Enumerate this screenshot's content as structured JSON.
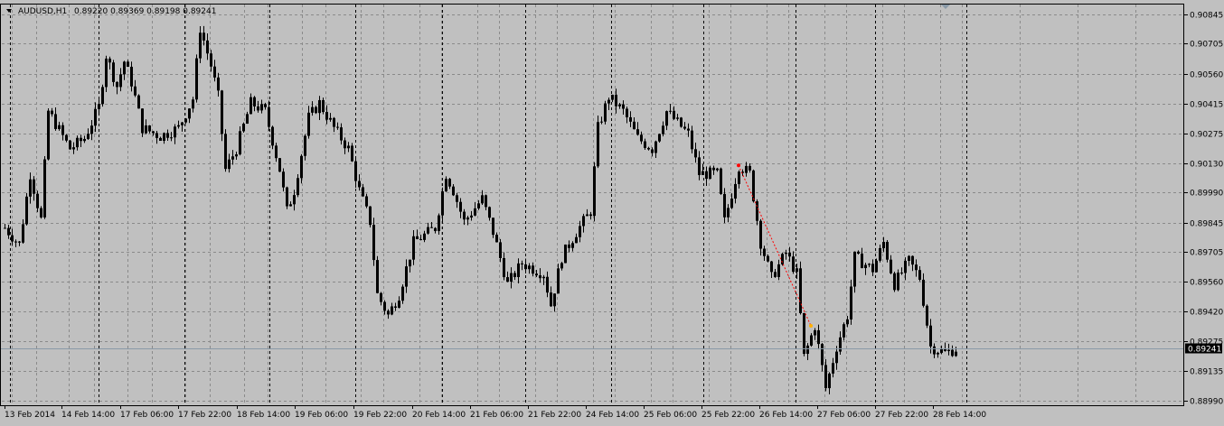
{
  "header": {
    "symbol": "AUDUSD,H1",
    "quote": "0.89220 0.89369 0.89198 0.89241"
  },
  "price_label": "0.89241",
  "colors": {
    "background": "#c0c0c0",
    "grid": "#8a8a8a",
    "candles": "#000000",
    "trade_line": "#ff0000",
    "price_label_bg": "#000000",
    "price_label_text": "#ffffff"
  },
  "chart_data": {
    "type": "candlestick",
    "timeframe": "H1",
    "y_ticks": [
      "0.90845",
      "0.90705",
      "0.90560",
      "0.90415",
      "0.90275",
      "0.90130",
      "0.89990",
      "0.89845",
      "0.89705",
      "0.89560",
      "0.89420",
      "0.89275",
      "0.89135",
      "0.88990"
    ],
    "x_ticks": [
      "13 Feb 2014",
      "14 Feb 14:00",
      "17 Feb 06:00",
      "17 Feb 22:00",
      "18 Feb 14:00",
      "19 Feb 06:00",
      "19 Feb 22:00",
      "20 Feb 14:00",
      "21 Feb 06:00",
      "21 Feb 22:00",
      "24 Feb 14:00",
      "25 Feb 06:00",
      "25 Feb 22:00",
      "26 Feb 14:00",
      "27 Feb 06:00",
      "27 Feb 22:00",
      "28 Feb 14:00"
    ],
    "ylim": [
      0.8899,
      0.9087
    ],
    "grid": true,
    "current_price": 0.89241,
    "trade_history": [
      {
        "from_bar": 203,
        "from_price": 0.9012,
        "to_bar": 223,
        "to_price": 0.8935
      }
    ],
    "waypoints": [
      [
        0,
        0.8982
      ],
      [
        4,
        0.8974
      ],
      [
        7,
        0.9008
      ],
      [
        10,
        0.8986
      ],
      [
        12,
        0.9038
      ],
      [
        18,
        0.902
      ],
      [
        22,
        0.9025
      ],
      [
        26,
        0.904
      ],
      [
        28,
        0.9065
      ],
      [
        31,
        0.905
      ],
      [
        33,
        0.9062
      ],
      [
        35,
        0.9052
      ],
      [
        38,
        0.903
      ],
      [
        43,
        0.9026
      ],
      [
        48,
        0.903
      ],
      [
        52,
        0.9044
      ],
      [
        54,
        0.9078
      ],
      [
        57,
        0.906
      ],
      [
        59,
        0.9045
      ],
      [
        61,
        0.901
      ],
      [
        64,
        0.902
      ],
      [
        68,
        0.9042
      ],
      [
        72,
        0.9038
      ],
      [
        76,
        0.901
      ],
      [
        78,
        0.899
      ],
      [
        80,
        0.9
      ],
      [
        84,
        0.9035
      ],
      [
        87,
        0.9042
      ],
      [
        91,
        0.903
      ],
      [
        95,
        0.902
      ],
      [
        98,
        0.9
      ],
      [
        101,
        0.8985
      ],
      [
        103,
        0.895
      ],
      [
        106,
        0.894
      ],
      [
        109,
        0.895
      ],
      [
        113,
        0.8975
      ],
      [
        119,
        0.8982
      ],
      [
        122,
        0.9008
      ],
      [
        124,
        0.9
      ],
      [
        127,
        0.8985
      ],
      [
        132,
        0.8996
      ],
      [
        135,
        0.898
      ],
      [
        139,
        0.8955
      ],
      [
        143,
        0.8965
      ],
      [
        149,
        0.896
      ],
      [
        151,
        0.8945
      ],
      [
        154,
        0.8968
      ],
      [
        158,
        0.898
      ],
      [
        162,
        0.899
      ],
      [
        164,
        0.903
      ],
      [
        167,
        0.9045
      ],
      [
        171,
        0.9038
      ],
      [
        175,
        0.9025
      ],
      [
        179,
        0.902
      ],
      [
        183,
        0.9038
      ],
      [
        189,
        0.9027
      ],
      [
        192,
        0.9008
      ],
      [
        197,
        0.9008
      ],
      [
        199,
        0.8985
      ],
      [
        203,
        0.9012
      ],
      [
        206,
        0.9008
      ],
      [
        209,
        0.8975
      ],
      [
        212,
        0.8958
      ],
      [
        216,
        0.897
      ],
      [
        219,
        0.896
      ],
      [
        221,
        0.892
      ],
      [
        224,
        0.8935
      ],
      [
        227,
        0.8905
      ],
      [
        230,
        0.8925
      ],
      [
        233,
        0.894
      ],
      [
        235,
        0.8968
      ],
      [
        240,
        0.8962
      ],
      [
        243,
        0.8975
      ],
      [
        246,
        0.8955
      ],
      [
        250,
        0.8966
      ],
      [
        253,
        0.8958
      ],
      [
        256,
        0.8925
      ],
      [
        260,
        0.8922
      ],
      [
        263,
        0.8924
      ]
    ]
  }
}
